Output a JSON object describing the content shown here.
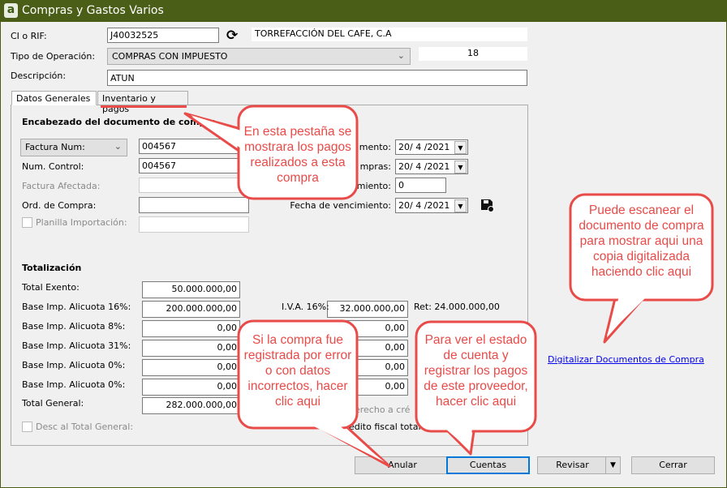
{
  "window": {
    "title": "Compras y Gastos Varios",
    "icon": "app-logo-a"
  },
  "header": {
    "rif_label": "CI o RIF:",
    "rif_value": "J40032525",
    "refresh_icon": "refresh-icon",
    "provider_name": "TORREFACCIÓN DEL CAFE, C.A",
    "operation_label": "Tipo de Operación:",
    "operation_value": "COMPRAS CON IMPUESTO",
    "number_value": "18",
    "description_label": "Descripción:",
    "description_value": "ATUN"
  },
  "tabs": [
    {
      "label": "Datos Generales",
      "active": true
    },
    {
      "label": "Inventario y pagos",
      "active": false
    }
  ],
  "document": {
    "section_title": "Encabezado del documento de compra",
    "doc_type": "Factura Num:",
    "doc_number": "004567",
    "control_label": "Num. Control:",
    "control_value": "004567",
    "affected_label": "Factura Afectada:",
    "affected_value": "",
    "order_label": "Ord. de Compra:",
    "order_value": "",
    "import_label": "Planilla Importación:",
    "import_value": "",
    "import_checked": false,
    "date1_label": "mento:",
    "date1_value": "20/ 4 /2021",
    "date2_label": "mpras:",
    "date2_value": "20/ 4 /2021",
    "days_label": "miento:",
    "days_value": "0",
    "due_label": "Fecha de vencimiento:",
    "due_value": "20/ 4 /2021",
    "save_icon": "save-check-icon"
  },
  "totals": {
    "section_title": "Totalización",
    "rows": [
      {
        "label": "Total Exento:",
        "value": "50.000.000,00"
      },
      {
        "label": "Base Imp. Alicuota 16%:",
        "value": "200.000.000,00",
        "tax_label": "I.V.A. 16%:",
        "tax_value": "32.000.000,00",
        "ret": "Ret: 24.000.000,00"
      },
      {
        "label": "Base Imp. Alicuota 8%:",
        "value": "0,00",
        "tax_value": "0,00"
      },
      {
        "label": "Base Imp. Alicuota 31%:",
        "value": "0,00",
        "tax_value": "0,00"
      },
      {
        "label": "Base Imp. Alicuota 0%:",
        "value": "0,00",
        "tax_value": "0,00"
      },
      {
        "label": "Base Imp. Alicuota 0%:",
        "value": "0,00",
        "tax_value": "0,00"
      },
      {
        "label": "Total General:",
        "value": "282.000.000,00"
      }
    ],
    "discount_label": "Desc al Total General:",
    "discount_checked": false,
    "credit_note1": "derecho a cré",
    "credit_note2": "edito fiscal total"
  },
  "link": "Digitalizar Documentos de Compra",
  "buttons": {
    "anular": "Anular",
    "cuentas": "Cuentas",
    "revisar": "Revisar",
    "cerrar": "Cerrar"
  },
  "callouts": {
    "tab": "En esta pestaña se mostrara los pagos realizados a esta compra",
    "scan": "Puede escanear el documento de compra para mostrar aqui una copia digitalizada haciendo clic aqui",
    "anular": "Si la compra fue registrada por error o con datos incorrectos, hacer clic aqui",
    "cuentas": "Para ver el estado de cuenta y registrar los pagos de este proveedor, hacer clic aqui"
  },
  "colors": {
    "titlebar": "#4a5e17",
    "callout": "#e84b48",
    "link": "#0000ee"
  }
}
